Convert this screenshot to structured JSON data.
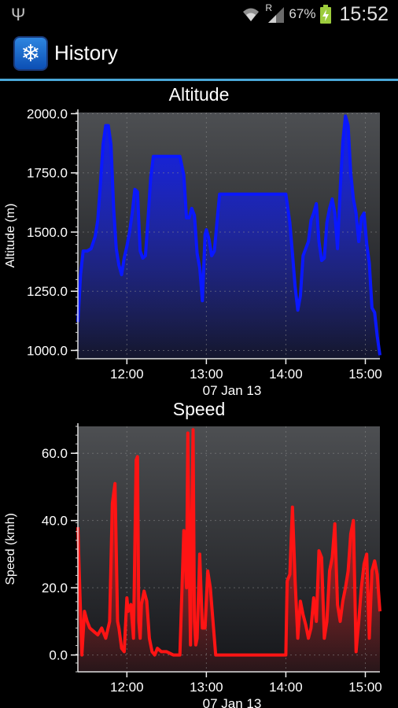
{
  "status": {
    "battery_percent": "67%",
    "time": "15:52",
    "roaming": "R",
    "icons": [
      "usb-icon",
      "wifi-icon",
      "signal-icon",
      "battery-charging-icon"
    ]
  },
  "app": {
    "title": "History",
    "icon": "snowflake-icon"
  },
  "colors": {
    "accent_line": "#4aa8d8",
    "altitude_series": "#0a18ff",
    "speed_series": "#ff1414"
  },
  "chart_data": [
    {
      "type": "area",
      "title": "Altitude",
      "xlabel": "07 Jan 13",
      "ylabel": "Altitude (m)",
      "x_ticks": [
        "12:00",
        "13:00",
        "14:00",
        "15:00"
      ],
      "y_ticks": [
        "1000.0",
        "1250.0",
        "1500.0",
        "1750.0",
        "2000.0"
      ],
      "xlim": [
        "11:23",
        "15:11"
      ],
      "ylim": [
        965,
        2005
      ],
      "grid": true,
      "series": [
        {
          "x": [
            "11:23",
            "11:25",
            "11:27",
            "11:30",
            "11:33",
            "11:36",
            "11:38",
            "11:40",
            "11:42",
            "11:44",
            "11:46",
            "11:48",
            "11:50",
            "11:52",
            "11:54",
            "11:56",
            "11:58",
            "12:00",
            "12:02",
            "12:04",
            "12:06",
            "12:08",
            "12:10",
            "12:12",
            "12:14",
            "12:16",
            "12:18",
            "12:20",
            "12:23",
            "12:26",
            "12:30",
            "12:35",
            "12:40",
            "12:43",
            "12:45",
            "12:47",
            "12:49",
            "12:51",
            "12:53",
            "12:55",
            "12:57",
            "12:59",
            "13:00",
            "13:02",
            "13:04",
            "13:06",
            "13:08",
            "13:10",
            "13:12",
            "13:15",
            "13:20",
            "13:30",
            "13:40",
            "13:50",
            "14:00",
            "14:03",
            "14:05",
            "14:07",
            "14:09",
            "14:11",
            "14:13",
            "14:15",
            "14:17",
            "14:19",
            "14:21",
            "14:23",
            "14:25",
            "14:27",
            "14:29",
            "14:31",
            "14:33",
            "14:35",
            "14:37",
            "14:39",
            "14:41",
            "14:43",
            "14:45",
            "14:47",
            "14:49",
            "14:51",
            "14:53",
            "14:55",
            "14:57",
            "14:59",
            "15:01",
            "15:03",
            "15:05",
            "15:07",
            "15:09",
            "15:11"
          ],
          "values": [
            1120,
            1320,
            1420,
            1420,
            1430,
            1480,
            1550,
            1700,
            1870,
            1950,
            1950,
            1870,
            1600,
            1430,
            1360,
            1320,
            1390,
            1440,
            1500,
            1580,
            1680,
            1670,
            1420,
            1390,
            1400,
            1560,
            1730,
            1820,
            1820,
            1820,
            1820,
            1820,
            1820,
            1740,
            1560,
            1560,
            1600,
            1570,
            1410,
            1350,
            1210,
            1490,
            1510,
            1470,
            1400,
            1420,
            1540,
            1660,
            1660,
            1660,
            1660,
            1660,
            1660,
            1660,
            1660,
            1540,
            1410,
            1270,
            1170,
            1230,
            1400,
            1430,
            1460,
            1550,
            1580,
            1620,
            1460,
            1380,
            1390,
            1540,
            1600,
            1640,
            1580,
            1430,
            1680,
            1880,
            1990,
            1950,
            1750,
            1640,
            1580,
            1460,
            1560,
            1580,
            1450,
            1370,
            1180,
            1160,
            1060,
            980
          ]
        }
      ]
    },
    {
      "type": "area",
      "title": "Speed",
      "xlabel": "07 Jan 13",
      "ylabel": "Speed (kmh)",
      "x_ticks": [
        "12:00",
        "13:00",
        "14:00",
        "15:00"
      ],
      "y_ticks": [
        "0.0",
        "20.0",
        "40.0",
        "60.0"
      ],
      "xlim": [
        "11:23",
        "15:11"
      ],
      "ylim": [
        -5,
        68
      ],
      "grid": true,
      "series": [
        {
          "x": [
            "11:23",
            "11:24",
            "11:26",
            "11:28",
            "11:30",
            "11:32",
            "11:35",
            "11:38",
            "11:41",
            "11:44",
            "11:47",
            "11:49",
            "11:51",
            "11:53",
            "11:54",
            "11:56",
            "11:58",
            "12:00",
            "12:01",
            "12:03",
            "12:05",
            "12:07",
            "12:08",
            "12:09",
            "12:10",
            "12:11",
            "12:13",
            "12:15",
            "12:17",
            "12:19",
            "12:21",
            "12:23",
            "12:26",
            "12:30",
            "12:35",
            "12:40",
            "12:43",
            "12:45",
            "12:46",
            "12:47",
            "12:48",
            "12:49",
            "12:50",
            "12:51",
            "12:52",
            "12:53",
            "12:55",
            "12:57",
            "12:59",
            "13:01",
            "13:03",
            "13:05",
            "13:07",
            "13:10",
            "13:15",
            "13:30",
            "13:45",
            "14:00",
            "14:01",
            "14:03",
            "14:05",
            "14:07",
            "14:09",
            "14:11",
            "14:13",
            "14:15",
            "14:17",
            "14:19",
            "14:21",
            "14:23",
            "14:25",
            "14:27",
            "14:29",
            "14:31",
            "14:33",
            "14:35",
            "14:37",
            "14:39",
            "14:41",
            "14:43",
            "14:45",
            "14:47",
            "14:49",
            "14:51",
            "14:53",
            "14:55",
            "14:57",
            "14:59",
            "15:01",
            "15:03",
            "15:05",
            "15:07",
            "15:09",
            "15:11"
          ],
          "values": [
            38,
            25,
            0,
            13,
            10,
            8,
            7,
            6,
            8,
            5,
            10,
            45,
            51,
            10,
            8,
            2,
            1,
            17,
            13,
            15,
            5,
            58,
            59,
            10,
            5,
            15,
            19,
            16,
            5,
            1,
            0,
            2,
            1,
            1,
            0,
            0,
            37,
            20,
            66,
            30,
            3,
            40,
            67,
            10,
            3,
            5,
            30,
            8,
            8,
            25,
            20,
            10,
            0,
            0,
            0,
            0,
            0,
            0,
            22,
            24,
            44,
            22,
            5,
            16,
            12,
            9,
            5,
            8,
            17,
            10,
            31,
            29,
            5,
            10,
            25,
            29,
            39,
            15,
            10,
            16,
            20,
            25,
            36,
            40,
            1,
            10,
            20,
            27,
            30,
            5,
            25,
            28,
            24,
            13
          ]
        }
      ]
    }
  ]
}
